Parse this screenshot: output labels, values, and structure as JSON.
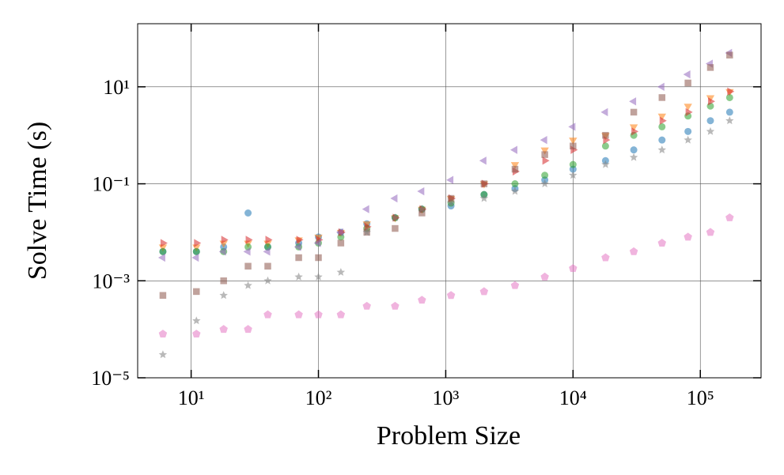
{
  "chart_data": {
    "type": "scatter",
    "xlabel": "Problem Size",
    "ylabel": "Solve Time (s)",
    "xscale": "log",
    "yscale": "log",
    "grid": true,
    "xlim": [
      3.8,
      300000
    ],
    "ylim": [
      1e-05,
      200
    ],
    "xticks": [
      {
        "value": 10,
        "label": "10¹"
      },
      {
        "value": 100,
        "label": "10²"
      },
      {
        "value": 1000,
        "label": "10³"
      },
      {
        "value": 10000,
        "label": "10⁴"
      },
      {
        "value": 100000,
        "label": "10⁵"
      }
    ],
    "yticks": [
      {
        "value": 1e-05,
        "label": "10⁻⁵"
      },
      {
        "value": 0.001,
        "label": "10⁻³"
      },
      {
        "value": 0.1,
        "label": "10⁻¹"
      },
      {
        "value": 10,
        "label": "10¹"
      }
    ],
    "x": [
      6,
      11,
      18,
      28,
      40,
      70,
      100,
      150,
      240,
      400,
      650,
      1100,
      2000,
      3500,
      6000,
      10000,
      18000,
      30000,
      50000,
      80000,
      120000,
      170000
    ],
    "series": [
      {
        "color": "#1f77b4",
        "marker": "circle",
        "values": [
          0.004,
          0.004,
          0.005,
          0.025,
          0.005,
          0.006,
          0.008,
          0.01,
          0.015,
          0.02,
          0.03,
          0.035,
          0.06,
          0.08,
          0.12,
          0.2,
          0.3,
          0.5,
          0.8,
          1.2,
          2,
          3
        ]
      },
      {
        "color": "#ff7f0e",
        "marker": "triangle-down",
        "values": [
          0.005,
          0.005,
          0.006,
          0.006,
          0.006,
          0.007,
          0.008,
          0.01,
          0.015,
          0.02,
          0.03,
          0.05,
          0.1,
          0.25,
          0.5,
          0.8,
          1,
          1.5,
          2.5,
          4,
          6,
          8
        ]
      },
      {
        "color": "#2ca02c",
        "marker": "circle",
        "values": [
          0.004,
          0.004,
          0.004,
          0.005,
          0.005,
          0.005,
          0.006,
          0.008,
          0.012,
          0.02,
          0.03,
          0.04,
          0.06,
          0.1,
          0.15,
          0.25,
          0.6,
          1,
          1.5,
          2.5,
          4,
          6
        ]
      },
      {
        "color": "#d62728",
        "marker": "triangle-right",
        "values": [
          0.006,
          0.006,
          0.007,
          0.007,
          0.007,
          0.007,
          0.007,
          0.01,
          0.013,
          0.02,
          0.03,
          0.05,
          0.1,
          0.18,
          0.3,
          0.5,
          0.8,
          1.2,
          2,
          3,
          5,
          8
        ]
      },
      {
        "color": "#9467bd",
        "marker": "triangle-left",
        "values": [
          0.003,
          0.003,
          0.004,
          0.004,
          0.004,
          0.005,
          0.006,
          0.01,
          0.03,
          0.05,
          0.07,
          0.12,
          0.3,
          0.5,
          0.8,
          1.5,
          3,
          5,
          10,
          18,
          30,
          50
        ]
      },
      {
        "color": "#8c564b",
        "marker": "square",
        "values": [
          0.0005,
          0.0006,
          0.001,
          0.002,
          0.002,
          0.003,
          0.003,
          0.006,
          0.01,
          0.012,
          0.025,
          0.05,
          0.1,
          0.2,
          0.4,
          0.6,
          1,
          3,
          6,
          12,
          25,
          45
        ]
      },
      {
        "color": "#e377c2",
        "marker": "pentagon",
        "values": [
          8e-05,
          8e-05,
          0.0001,
          0.0001,
          0.0002,
          0.0002,
          0.0002,
          0.0002,
          0.0003,
          0.0003,
          0.0004,
          0.0005,
          0.0006,
          0.0008,
          0.0012,
          0.0018,
          0.003,
          0.004,
          0.006,
          0.008,
          0.01,
          0.02
        ]
      },
      {
        "color": "#7f7f7f",
        "marker": "star",
        "values": [
          3e-05,
          0.00015,
          0.0005,
          0.0008,
          0.001,
          0.0012,
          0.0012,
          0.0015,
          0.01,
          0.02,
          0.03,
          0.04,
          0.05,
          0.07,
          0.1,
          0.15,
          0.25,
          0.35,
          0.5,
          0.8,
          1.2,
          2
        ]
      }
    ]
  }
}
